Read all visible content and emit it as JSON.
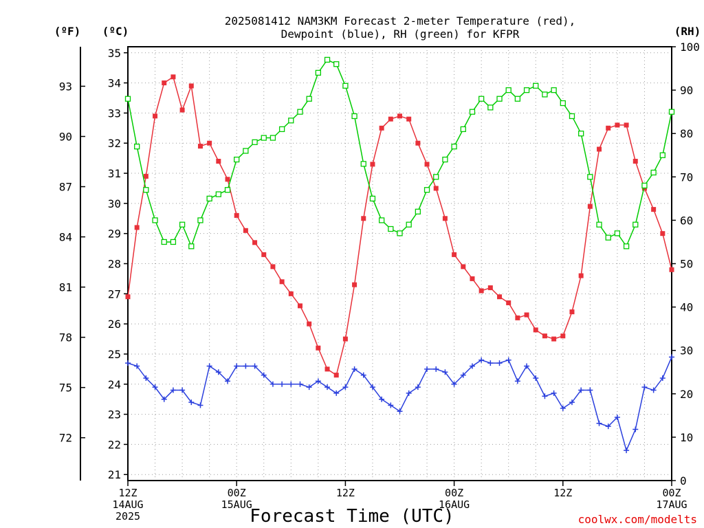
{
  "title_line1": "2025081412 NAM3KM Forecast 2-meter Temperature (red),",
  "title_line2": "Dewpoint (blue), RH (green) for KFPR",
  "unit_left_f": "(ºF)",
  "unit_left_c": "(ºC)",
  "unit_right": "(RH)",
  "credit": "coolwx.com/modelts",
  "colors": {
    "temperature": "#e8313a",
    "dewpoint": "#2a3fdd",
    "rh": "#00cc00"
  },
  "chart_data": {
    "type": "line",
    "x_range_hours": [
      0,
      60
    ],
    "x_ticks": [
      {
        "hour": 0,
        "lines": [
          "12Z",
          "14AUG",
          "2025"
        ]
      },
      {
        "hour": 12,
        "lines": [
          "00Z",
          "15AUG"
        ]
      },
      {
        "hour": 24,
        "lines": [
          "12Z"
        ]
      },
      {
        "hour": 36,
        "lines": [
          "00Z",
          "16AUG"
        ]
      },
      {
        "hour": 48,
        "lines": [
          "12Z"
        ]
      },
      {
        "hour": 60,
        "lines": [
          "00Z",
          "17AUG"
        ]
      }
    ],
    "xlabel": "Forecast Time (UTC)",
    "ylim_c": [
      20.8,
      35.2
    ],
    "yticks_c": [
      21,
      22,
      23,
      24,
      25,
      26,
      27,
      28,
      29,
      30,
      31,
      32,
      33,
      34,
      35
    ],
    "yticks_f": [
      72,
      75,
      78,
      81,
      84,
      87,
      90,
      93
    ],
    "ylim_rh": [
      0,
      100
    ],
    "yticks_rh": [
      0,
      10,
      20,
      30,
      40,
      50,
      60,
      70,
      80,
      90,
      100
    ],
    "grid": true,
    "series": [
      {
        "name": "Temperature",
        "axis": "C",
        "marker": "filled-square",
        "values": [
          26.9,
          29.2,
          30.9,
          32.9,
          34.0,
          34.2,
          33.1,
          33.9,
          31.9,
          32.0,
          31.4,
          30.8,
          29.6,
          29.1,
          28.7,
          28.3,
          27.9,
          27.4,
          27.0,
          26.6,
          26.0,
          25.2,
          24.5,
          24.3,
          25.5,
          27.3,
          29.5,
          31.3,
          32.5,
          32.8,
          32.9,
          32.8,
          32.0,
          31.3,
          30.5,
          29.5,
          28.3,
          27.9,
          27.5,
          27.1,
          27.2,
          26.9,
          26.7,
          26.2,
          26.3,
          25.8,
          25.6,
          25.5,
          25.6,
          26.4,
          27.6,
          29.9,
          31.8,
          32.5,
          32.6,
          32.6,
          31.4,
          30.5,
          29.8,
          29.0,
          27.8
        ]
      },
      {
        "name": "Dewpoint",
        "axis": "C",
        "marker": "plus",
        "values": [
          24.7,
          24.6,
          24.2,
          23.9,
          23.5,
          23.8,
          23.8,
          23.4,
          23.3,
          24.6,
          24.4,
          24.1,
          24.6,
          24.6,
          24.6,
          24.3,
          24.0,
          24.0,
          24.0,
          24.0,
          23.9,
          24.1,
          23.9,
          23.7,
          23.9,
          24.5,
          24.3,
          23.9,
          23.5,
          23.3,
          23.1,
          23.7,
          23.9,
          24.5,
          24.5,
          24.4,
          24.0,
          24.3,
          24.6,
          24.8,
          24.7,
          24.7,
          24.8,
          24.1,
          24.6,
          24.2,
          23.6,
          23.7,
          23.2,
          23.4,
          23.8,
          23.8,
          22.7,
          22.6,
          22.9,
          21.8,
          22.5,
          23.9,
          23.8,
          24.2,
          24.9
        ]
      },
      {
        "name": "RH",
        "axis": "RH",
        "marker": "open-square",
        "values": [
          88,
          77,
          67,
          60,
          55,
          55,
          59,
          54,
          60,
          65,
          66,
          67,
          74,
          76,
          78,
          79,
          79,
          81,
          83,
          85,
          88,
          94,
          97,
          96,
          91,
          84,
          73,
          65,
          60,
          58,
          57,
          59,
          62,
          67,
          70,
          74,
          77,
          81,
          85,
          88,
          86,
          88,
          90,
          88,
          90,
          91,
          89,
          90,
          87,
          84,
          80,
          70,
          59,
          56,
          57,
          54,
          59,
          68,
          71,
          75,
          85
        ]
      }
    ]
  }
}
